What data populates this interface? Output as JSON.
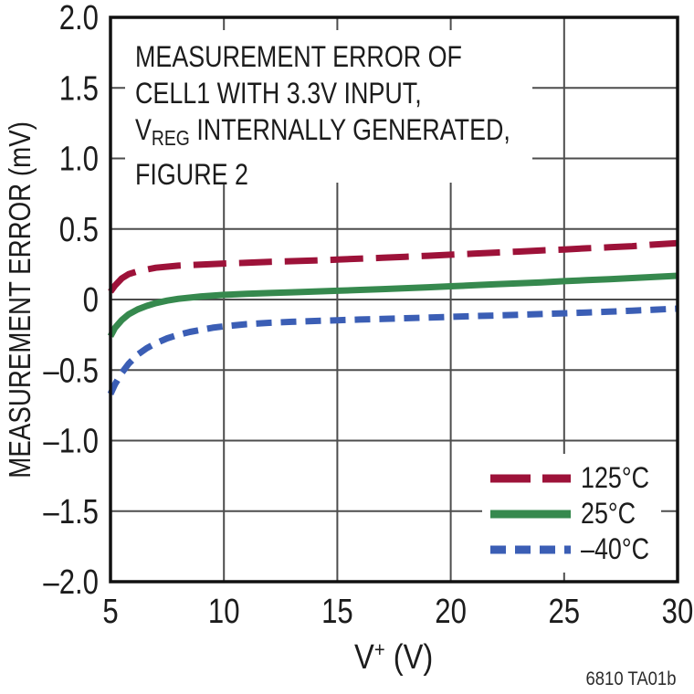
{
  "figure": {
    "watermark": "6810 TA01b"
  },
  "chart_data": {
    "type": "line",
    "xlabel_pre": "V",
    "xlabel_sup": "+",
    "xlabel_post": " (V)",
    "ylabel": "MEASUREMENT ERROR (mV)",
    "annotation": {
      "line1": "MEASUREMENT ERROR OF",
      "line2": "CELL1 WITH 3.3V INPUT,",
      "line3_pre": "V",
      "line3_sub": "REG",
      "line3_post": " INTERNALLY GENERATED,",
      "line4": "FIGURE 2"
    },
    "xlim": [
      5,
      30
    ],
    "ylim": [
      -2,
      2
    ],
    "grid": true,
    "grid_color": "#4d4d4d",
    "frame_color": "#111111",
    "legend_position": "lower right",
    "x_ticks": [
      5,
      10,
      15,
      20,
      25,
      30
    ],
    "x_tick_labels": [
      "5",
      "10",
      "15",
      "20",
      "25",
      "30"
    ],
    "y_ticks": [
      2.0,
      1.5,
      1.0,
      0.5,
      0,
      -0.5,
      -1.0,
      -1.5,
      -2.0
    ],
    "y_tick_labels": [
      "2.0",
      "1.5",
      "1.0",
      "0.5",
      "0",
      "–0.5",
      "–1.0",
      "–1.5",
      "–2.0"
    ],
    "series": [
      {
        "id": "125c",
        "name": "125°C",
        "color": "#9d1239",
        "style": "long-dash",
        "dash": "36 14",
        "legend_dash": "44 13",
        "points": [
          [
            5,
            0.055
          ],
          [
            5.2,
            0.1
          ],
          [
            5.5,
            0.15
          ],
          [
            5.8,
            0.18
          ],
          [
            6.2,
            0.2
          ],
          [
            7,
            0.225
          ],
          [
            8,
            0.24
          ],
          [
            9,
            0.248
          ],
          [
            10,
            0.255
          ],
          [
            11,
            0.26
          ],
          [
            12,
            0.267
          ],
          [
            13,
            0.272
          ],
          [
            14,
            0.277
          ],
          [
            15,
            0.283
          ],
          [
            16,
            0.29
          ],
          [
            17,
            0.296
          ],
          [
            18,
            0.303
          ],
          [
            19,
            0.31
          ],
          [
            20,
            0.318
          ],
          [
            21,
            0.325
          ],
          [
            22,
            0.333
          ],
          [
            23,
            0.34
          ],
          [
            24,
            0.348
          ],
          [
            25,
            0.355
          ],
          [
            26,
            0.363
          ],
          [
            27,
            0.37
          ],
          [
            28,
            0.378
          ],
          [
            29,
            0.39
          ],
          [
            30,
            0.4
          ]
        ]
      },
      {
        "id": "25c",
        "name": "25°C",
        "color": "#36894e",
        "style": "solid",
        "dash": null,
        "legend_dash": null,
        "points": [
          [
            5,
            -0.26
          ],
          [
            5.2,
            -0.2
          ],
          [
            5.5,
            -0.145
          ],
          [
            5.8,
            -0.105
          ],
          [
            6.2,
            -0.07
          ],
          [
            6.6,
            -0.045
          ],
          [
            7,
            -0.025
          ],
          [
            7.5,
            -0.008
          ],
          [
            8,
            0.005
          ],
          [
            9,
            0.022
          ],
          [
            10,
            0.033
          ],
          [
            11,
            0.04
          ],
          [
            12,
            0.046
          ],
          [
            13,
            0.051
          ],
          [
            14,
            0.056
          ],
          [
            15,
            0.062
          ],
          [
            16,
            0.068
          ],
          [
            17,
            0.074
          ],
          [
            18,
            0.08
          ],
          [
            19,
            0.087
          ],
          [
            20,
            0.094
          ],
          [
            21,
            0.101
          ],
          [
            22,
            0.108
          ],
          [
            23,
            0.115
          ],
          [
            24,
            0.122
          ],
          [
            25,
            0.13
          ],
          [
            26,
            0.137
          ],
          [
            27,
            0.144
          ],
          [
            28,
            0.152
          ],
          [
            29,
            0.16
          ],
          [
            30,
            0.168
          ]
        ]
      },
      {
        "id": "minus40c",
        "name": "–40°C",
        "color": "#3b5eb5",
        "style": "short-dash",
        "dash": "17 10",
        "legend_dash": "17 10",
        "points": [
          [
            5,
            -0.67
          ],
          [
            5.2,
            -0.6
          ],
          [
            5.5,
            -0.52
          ],
          [
            5.8,
            -0.455
          ],
          [
            6.2,
            -0.39
          ],
          [
            6.6,
            -0.345
          ],
          [
            7,
            -0.31
          ],
          [
            7.5,
            -0.275
          ],
          [
            8,
            -0.25
          ],
          [
            8.5,
            -0.23
          ],
          [
            9,
            -0.215
          ],
          [
            9.5,
            -0.2
          ],
          [
            10,
            -0.19
          ],
          [
            11,
            -0.175
          ],
          [
            12,
            -0.165
          ],
          [
            13,
            -0.158
          ],
          [
            14,
            -0.152
          ],
          [
            15,
            -0.147
          ],
          [
            16,
            -0.142
          ],
          [
            17,
            -0.138
          ],
          [
            18,
            -0.133
          ],
          [
            19,
            -0.128
          ],
          [
            20,
            -0.123
          ],
          [
            21,
            -0.118
          ],
          [
            22,
            -0.113
          ],
          [
            23,
            -0.108
          ],
          [
            24,
            -0.103
          ],
          [
            25,
            -0.098
          ],
          [
            26,
            -0.092
          ],
          [
            27,
            -0.086
          ],
          [
            28,
            -0.079
          ],
          [
            29,
            -0.072
          ],
          [
            30,
            -0.065
          ]
        ]
      }
    ]
  }
}
